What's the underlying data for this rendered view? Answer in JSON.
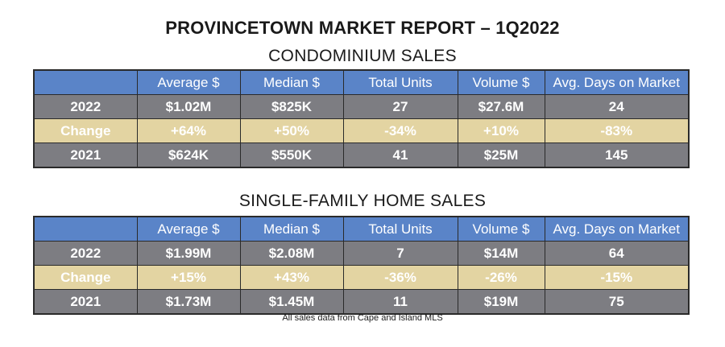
{
  "title": "PROVINCETOWN MARKET REPORT – 1Q2022",
  "columns": [
    "",
    "Average $",
    "Median $",
    "Total Units",
    "Volume $",
    "Avg. Days on Market"
  ],
  "condo": {
    "heading": "CONDOMINIUM SALES",
    "rows": [
      {
        "label": "2022",
        "values": [
          "$1.02M",
          "$825K",
          "27",
          "$27.6M",
          "24"
        ]
      },
      {
        "label": "Change",
        "values": [
          "+64%",
          "+50%",
          "-34%",
          "+10%",
          "-83%"
        ]
      },
      {
        "label": "2021",
        "values": [
          "$624K",
          "$550K",
          "41",
          "$25M",
          "145"
        ]
      }
    ]
  },
  "single_family": {
    "heading": "SINGLE-FAMILY HOME SALES",
    "rows": [
      {
        "label": "2022",
        "values": [
          "$1.99M",
          "$2.08M",
          "7",
          "$14M",
          "64"
        ]
      },
      {
        "label": "Change",
        "values": [
          "+15%",
          "+43%",
          "-36%",
          "-26%",
          "-15%"
        ]
      },
      {
        "label": "2021",
        "values": [
          "$1.73M",
          "$1.45M",
          "11",
          "$19M",
          "75"
        ]
      }
    ]
  },
  "footnote": "All sales data from Cape and Island MLS",
  "colors": {
    "header_blue": "#5a84c8",
    "row_grey": "#7d7d82",
    "change_gold": "#e3d4a2"
  }
}
